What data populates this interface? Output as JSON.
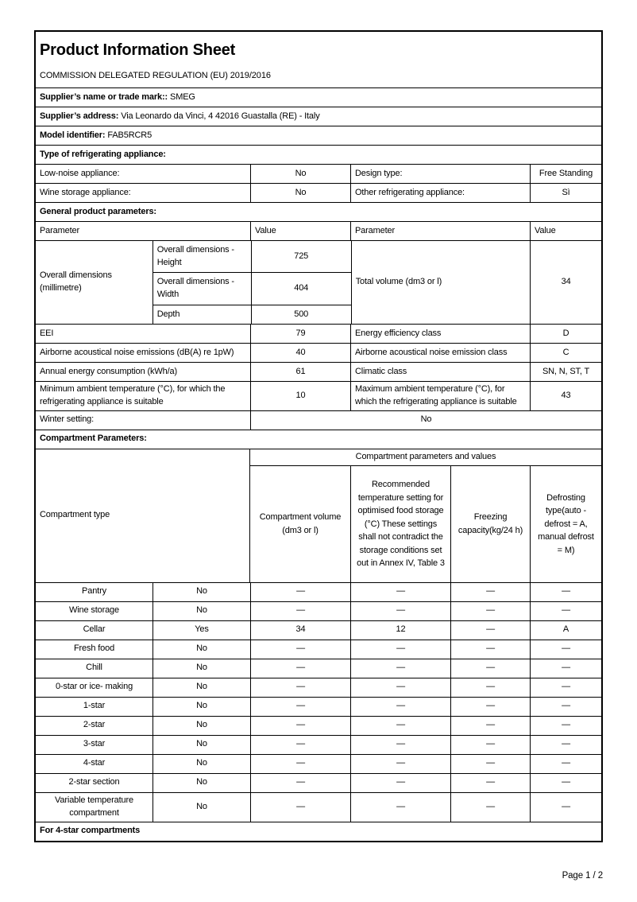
{
  "document": {
    "title": "Product Information Sheet",
    "regulation": "COMMISSION DELEGATED REGULATION (EU) 2019/2016",
    "page_footer": "Page 1 / 2"
  },
  "header_fields": [
    {
      "label": "Supplier’s name or trade mark::",
      "value": "SMEG"
    },
    {
      "label": "Supplier’s address:",
      "value": "Via Leonardo da Vinci, 4 42016 Guastalla (RE) - Italy"
    },
    {
      "label": "Model identifier:",
      "value": "FAB5RCR5"
    }
  ],
  "type_section": {
    "heading": "Type of refrigerating appliance:",
    "rows": [
      {
        "label": "Low-noise appliance:",
        "value": "No",
        "label2": "Design type:",
        "value2": "Free Standing"
      },
      {
        "label": "Wine storage appliance:",
        "value": "No",
        "label2": "Other refrigerating appliance:",
        "value2": "Sì"
      }
    ]
  },
  "general_section": {
    "heading": "General product parameters:",
    "columns": [
      "Parameter",
      "Value",
      "Parameter",
      "Value"
    ],
    "dimensions": {
      "group_label": "Overall dimensions (millimetre)",
      "rows": [
        {
          "label": "Overall dimensions - Height",
          "value": "725"
        },
        {
          "label": "Overall dimensions - Width",
          "value": "404"
        },
        {
          "label": "Depth",
          "value": "500"
        }
      ],
      "right_label": "Total volume (dm3 or l)",
      "right_value": "34"
    },
    "rows": [
      {
        "label": "EEI",
        "value": "79",
        "label2": "Energy efficiency class",
        "value2": "D"
      },
      {
        "label": "Airborne acoustical noise emissions (dB(A) re 1pW)",
        "value": "40",
        "label2": "Airborne acoustical noise emission class",
        "value2": "C"
      },
      {
        "label": "Annual energy consumption (kWh/a)",
        "value": "61",
        "label2": "Climatic class",
        "value2": "SN, N, ST, T"
      },
      {
        "label": "Minimum ambient temperature (°C), for which the refrigerating appliance is suitable",
        "value": "10",
        "label2": "Maximum ambient temperature (°C), for which the refrigerating appliance is suitable",
        "value2": "43"
      }
    ],
    "winter": {
      "label": "Winter setting:",
      "value": "No"
    }
  },
  "compartment_section": {
    "heading": "Compartment Parameters:",
    "group_header": "Compartment parameters and values",
    "columns": {
      "type": "Compartment type",
      "volume": "Compartment volume (dm3 or l)",
      "temperature": "Recommended temperature setting for optimised food storage (°C) These settings shall not contradict the storage conditions set out in Annex IV, Table 3",
      "freezing": "Freezing capacity(kg/24 h)",
      "defrosting": "Defrosting type(auto - defrost = A, manual defrost = M)"
    },
    "rows": [
      {
        "type": "Pantry",
        "present": "No",
        "volume": "—",
        "temperature": "—",
        "freezing": "—",
        "defrosting": "—"
      },
      {
        "type": "Wine storage",
        "present": "No",
        "volume": "—",
        "temperature": "—",
        "freezing": "—",
        "defrosting": "—"
      },
      {
        "type": "Cellar",
        "present": "Yes",
        "volume": "34",
        "temperature": "12",
        "freezing": "—",
        "defrosting": "A"
      },
      {
        "type": "Fresh food",
        "present": "No",
        "volume": "—",
        "temperature": "—",
        "freezing": "—",
        "defrosting": "—"
      },
      {
        "type": "Chill",
        "present": "No",
        "volume": "—",
        "temperature": "—",
        "freezing": "—",
        "defrosting": "—"
      },
      {
        "type": "0-star or ice- making",
        "present": "No",
        "volume": "—",
        "temperature": "—",
        "freezing": "—",
        "defrosting": "—"
      },
      {
        "type": "1-star",
        "present": "No",
        "volume": "—",
        "temperature": "—",
        "freezing": "—",
        "defrosting": "—"
      },
      {
        "type": "2-star",
        "present": "No",
        "volume": "—",
        "temperature": "—",
        "freezing": "—",
        "defrosting": "—"
      },
      {
        "type": "3-star",
        "present": "No",
        "volume": "—",
        "temperature": "—",
        "freezing": "—",
        "defrosting": "—"
      },
      {
        "type": "4-star",
        "present": "No",
        "volume": "—",
        "temperature": "—",
        "freezing": "—",
        "defrosting": "—"
      },
      {
        "type": "2-star section",
        "present": "No",
        "volume": "—",
        "temperature": "—",
        "freezing": "—",
        "defrosting": "—"
      },
      {
        "type": "Variable temperature compartment",
        "present": "No",
        "volume": "—",
        "temperature": "—",
        "freezing": "—",
        "defrosting": "—"
      }
    ],
    "footer_heading": "For 4-star compartments"
  }
}
